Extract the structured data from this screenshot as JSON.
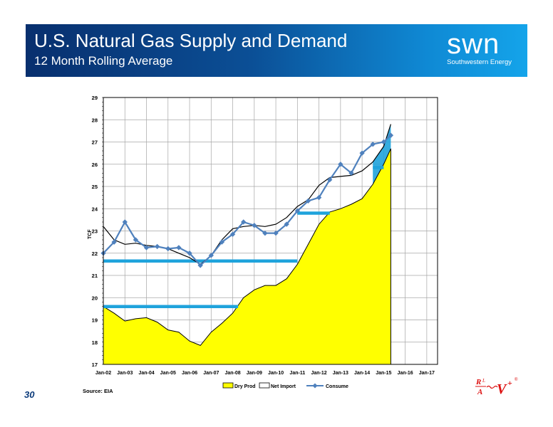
{
  "header": {
    "title": "U.S. Natural Gas Supply and Demand",
    "subtitle": "12 Month Rolling Average",
    "logo_word": "swn",
    "logo_sub": "Southwestern Energy"
  },
  "footer": {
    "page_number": "30",
    "source": "Source: EIA"
  },
  "colors": {
    "dry_prod_fill": "#ffff00",
    "consume": "#4f81bd",
    "net_import_fill": "#1fa3dc",
    "banner_dark": "#082f6e",
    "banner_light": "#14a4ea"
  },
  "chart_data": {
    "type": "area",
    "ylabel": "TCF",
    "xlabel": "",
    "ylim": [
      17,
      29
    ],
    "yticks": [
      17,
      18,
      19,
      20,
      21,
      22,
      23,
      24,
      25,
      26,
      27,
      28,
      29
    ],
    "x_ticks": [
      "Jan-02",
      "Jan-03",
      "Jan-04",
      "Jan-05",
      "Jan-06",
      "Jan-07",
      "Jan-08",
      "Jan-09",
      "Jan-10",
      "Jan-11",
      "Jan-12",
      "Jan-13",
      "Jan-14",
      "Jan-15",
      "Jan-16",
      "Jan-17"
    ],
    "x_range": [
      "Jan-02",
      "Jan-17"
    ],
    "grid": true,
    "legend": {
      "position": "bottom",
      "entries": [
        "Dry Prod",
        "Net Import",
        "Consume"
      ]
    },
    "series": [
      {
        "name": "Dry Prod",
        "style": "yellow area",
        "points": [
          [
            "Jan-02",
            19.6
          ],
          [
            "Jul-02",
            19.3
          ],
          [
            "Jan-03",
            18.95
          ],
          [
            "Jul-03",
            19.05
          ],
          [
            "Jan-04",
            19.1
          ],
          [
            "Jul-04",
            18.9
          ],
          [
            "Jan-05",
            18.55
          ],
          [
            "Jul-05",
            18.45
          ],
          [
            "Jan-06",
            18.05
          ],
          [
            "Jul-06",
            17.85
          ],
          [
            "Jan-07",
            18.45
          ],
          [
            "Jul-07",
            18.85
          ],
          [
            "Jan-08",
            19.3
          ],
          [
            "Jul-08",
            20.0
          ],
          [
            "Jan-09",
            20.35
          ],
          [
            "Jul-09",
            20.55
          ],
          [
            "Jan-10",
            20.55
          ],
          [
            "Jul-10",
            20.85
          ],
          [
            "Jan-11",
            21.5
          ],
          [
            "Jul-11",
            22.4
          ],
          [
            "Jan-12",
            23.3
          ],
          [
            "Jul-12",
            23.85
          ],
          [
            "Jan-13",
            24.0
          ],
          [
            "Jul-13",
            24.2
          ],
          [
            "Jan-14",
            24.45
          ],
          [
            "Jul-14",
            25.1
          ],
          [
            "Jan-15",
            26.0
          ],
          [
            "May-15",
            26.7
          ]
        ]
      },
      {
        "name": "Net Import",
        "style": "black line (Dry Prod + Net Import)",
        "points": [
          [
            "Jan-02",
            23.2
          ],
          [
            "Jul-02",
            22.6
          ],
          [
            "Jan-03",
            22.4
          ],
          [
            "Jul-03",
            22.45
          ],
          [
            "Jan-04",
            22.35
          ],
          [
            "Jul-04",
            22.3
          ],
          [
            "Jan-05",
            22.2
          ],
          [
            "Jul-05",
            22.0
          ],
          [
            "Jan-06",
            21.8
          ],
          [
            "Jul-06",
            21.5
          ],
          [
            "Jan-07",
            21.9
          ],
          [
            "Jul-07",
            22.6
          ],
          [
            "Jan-08",
            23.1
          ],
          [
            "Jul-08",
            23.2
          ],
          [
            "Jan-09",
            23.25
          ],
          [
            "Jul-09",
            23.2
          ],
          [
            "Jan-10",
            23.3
          ],
          [
            "Jul-10",
            23.6
          ],
          [
            "Jan-11",
            24.1
          ],
          [
            "Jul-11",
            24.4
          ],
          [
            "Jan-12",
            25.05
          ],
          [
            "Jul-12",
            25.4
          ],
          [
            "Jan-13",
            25.45
          ],
          [
            "Jul-13",
            25.5
          ],
          [
            "Jan-14",
            25.7
          ],
          [
            "Jul-14",
            26.1
          ],
          [
            "Jan-15",
            26.8
          ],
          [
            "May-15",
            27.8
          ]
        ]
      },
      {
        "name": "Consume",
        "style": "blue line with diamond markers",
        "points": [
          [
            "Jan-02",
            22.0
          ],
          [
            "Jul-02",
            22.5
          ],
          [
            "Jan-03",
            23.4
          ],
          [
            "Jul-03",
            22.6
          ],
          [
            "Jan-04",
            22.25
          ],
          [
            "Jul-04",
            22.3
          ],
          [
            "Jan-05",
            22.2
          ],
          [
            "Jul-05",
            22.25
          ],
          [
            "Jan-06",
            22.0
          ],
          [
            "Jul-06",
            21.45
          ],
          [
            "Jan-07",
            21.9
          ],
          [
            "Jul-07",
            22.5
          ],
          [
            "Jan-08",
            22.85
          ],
          [
            "Jul-08",
            23.4
          ],
          [
            "Jan-09",
            23.25
          ],
          [
            "Jul-09",
            22.9
          ],
          [
            "Jan-10",
            22.9
          ],
          [
            "Jul-10",
            23.3
          ],
          [
            "Jan-11",
            23.9
          ],
          [
            "Jul-11",
            24.35
          ],
          [
            "Jan-12",
            24.5
          ],
          [
            "Jul-12",
            25.3
          ],
          [
            "Jan-13",
            26.0
          ],
          [
            "Jul-13",
            25.6
          ],
          [
            "Jan-14",
            26.5
          ],
          [
            "Jul-14",
            26.9
          ],
          [
            "Jan-15",
            27.0
          ],
          [
            "May-15",
            27.3
          ]
        ]
      }
    ],
    "reference_bars": [
      {
        "y": 19.6,
        "from": "Jan-02",
        "to": "Apr-08"
      },
      {
        "y": 21.65,
        "from": "Jan-02",
        "to": "Jan-11"
      },
      {
        "y": 23.8,
        "from": "Jan-11",
        "to": "Jul-12"
      },
      {
        "y": 25.85,
        "from": "Jul-14",
        "to": "Jan-15"
      }
    ]
  }
}
